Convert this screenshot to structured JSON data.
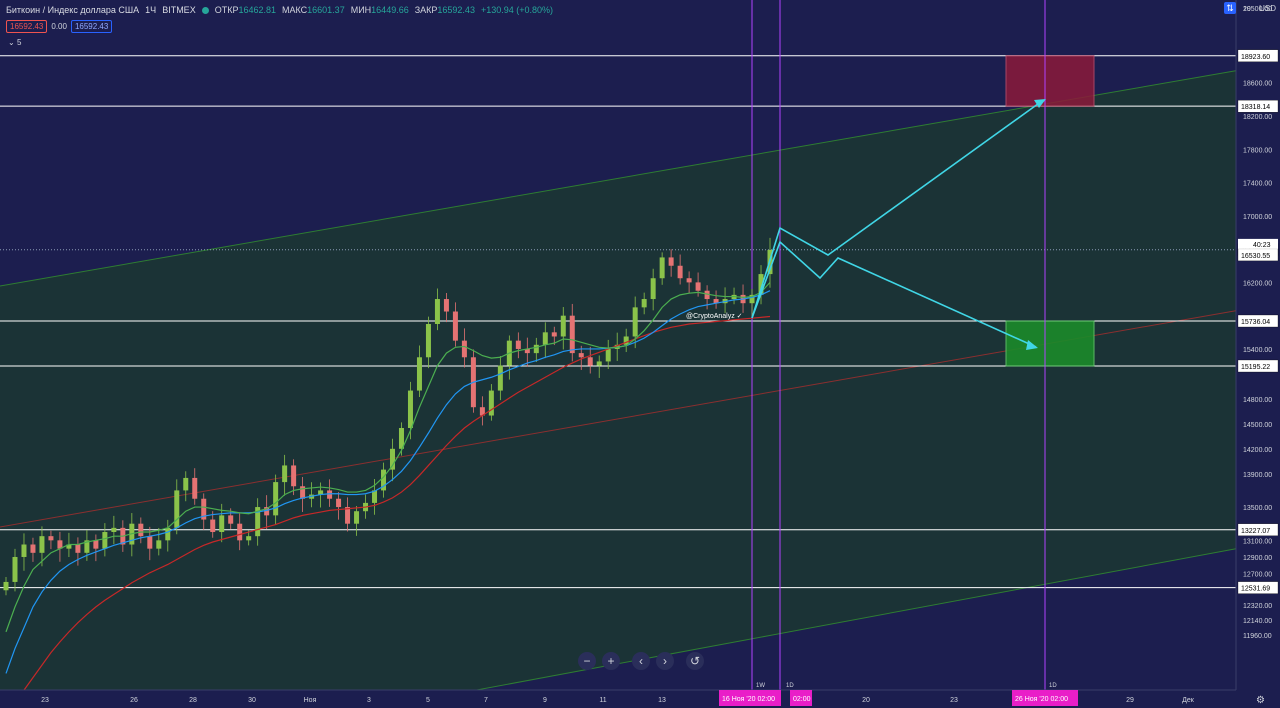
{
  "header": {
    "title": "Биткоин / Индекс доллара США",
    "interval": "1Ч",
    "exchange": "BITMEX",
    "open_label": "ОТКР",
    "open_value": "16462.81",
    "high_label": "МАКС",
    "high_value": "16601.37",
    "low_label": "МИН",
    "low_value": "16449.66",
    "close_label": "ЗАКР",
    "close_value": "16592.43",
    "change": "+130.94 (+0.80%)",
    "bid": "16592.43",
    "spread": "0.00",
    "ask": "16592.43",
    "indicators_count": "5",
    "currency": "USD"
  },
  "colors": {
    "background": "#1c1e4f",
    "channel_fill": "#1b3336",
    "hline": "#ffffff",
    "arrow": "#40d6e6",
    "vline": "#b042ff",
    "ma_green": "#4caf50",
    "ma_blue": "#2196f3",
    "ma_red": "#c62828",
    "up_candle": "#8bc34a",
    "down_candle": "#e57373",
    "target_red": "#8b1a3a",
    "target_green": "#1b8a2a",
    "date_badge": "#e91ec8"
  },
  "watermark": "@CryptoAnalyz ✓",
  "chart_data": {
    "type": "candlestick",
    "ylim": [
      11850,
      20050
    ],
    "y_ticks": [
      19500,
      18600,
      18200,
      17800,
      17400,
      17000,
      16600,
      16200,
      15400,
      14800,
      14500,
      14200,
      13900,
      13500,
      13100,
      12900,
      12700,
      12320,
      12140,
      11960
    ],
    "x_ticks": [
      "23",
      "26",
      "28",
      "30",
      "Ноя",
      "3",
      "5",
      "7",
      "9",
      "11",
      "13",
      "20",
      "23",
      "29",
      "Дек"
    ],
    "top_cut_label": "20",
    "price_levels": [
      {
        "label": "18923.60",
        "value": 18923.6
      },
      {
        "label": "18318.14",
        "value": 18318.14
      },
      {
        "label": "16592.43",
        "value": 16592.43
      },
      {
        "label": "16530.55",
        "value": 16530.55
      },
      {
        "label": "15736.04",
        "value": 15736.04
      },
      {
        "label": "15195.22",
        "value": 15195.22
      },
      {
        "label": "13227.07",
        "value": 13227.07
      },
      {
        "label": "12531.69",
        "value": 12531.69
      }
    ],
    "countdown": "40:23",
    "series_close": [
      12600,
      12900,
      13050,
      12950,
      13150,
      13100,
      13000,
      13050,
      12950,
      13100,
      13000,
      13200,
      13250,
      13050,
      13300,
      13150,
      13000,
      13100,
      13250,
      13700,
      13850,
      13600,
      13350,
      13200,
      13400,
      13300,
      13100,
      13150,
      13500,
      13400,
      13800,
      14000,
      13750,
      13600,
      13650,
      13700,
      13600,
      13500,
      13300,
      13450,
      13550,
      13700,
      13950,
      14200,
      14450,
      14900,
      15300,
      15700,
      16000,
      15850,
      15500,
      15300,
      14700,
      14600,
      14900,
      15200,
      15500,
      15400,
      15350,
      15450,
      15600,
      15550,
      15800,
      15350,
      15300,
      15200,
      15250,
      15400,
      15450,
      15550,
      15900,
      16000,
      16250,
      16500,
      16400,
      16250,
      16200,
      16100,
      16000,
      15950,
      16000,
      16050,
      15950,
      16050,
      16300,
      16590
    ],
    "ma_green": [
      12000,
      12300,
      12550,
      12750,
      12850,
      12950,
      13000,
      13050,
      13050,
      13080,
      13100,
      13120,
      13150,
      13150,
      13180,
      13200,
      13200,
      13220,
      13250,
      13350,
      13450,
      13500,
      13500,
      13480,
      13460,
      13450,
      13430,
      13420,
      13450,
      13480,
      13550,
      13650,
      13700,
      13720,
      13730,
      13740,
      13730,
      13710,
      13680,
      13680,
      13700,
      13760,
      13860,
      14000,
      14180,
      14420,
      14700,
      14950,
      15200,
      15350,
      15420,
      15430,
      15380,
      15320,
      15290,
      15300,
      15350,
      15380,
      15400,
      15420,
      15450,
      15470,
      15520,
      15510,
      15480,
      15450,
      15420,
      15410,
      15420,
      15440,
      15520,
      15620,
      15750,
      15900,
      16000,
      16050,
      16070,
      16080,
      16060,
      16040,
      16030,
      16030,
      16020,
      16030,
      16080,
      16200
    ],
    "ma_blue": [
      11500,
      11800,
      12050,
      12300,
      12480,
      12620,
      12730,
      12810,
      12870,
      12920,
      12960,
      13000,
      13040,
      13070,
      13100,
      13130,
      13150,
      13170,
      13200,
      13250,
      13310,
      13360,
      13390,
      13410,
      13420,
      13430,
      13430,
      13430,
      13440,
      13460,
      13490,
      13540,
      13580,
      13610,
      13630,
      13650,
      13660,
      13660,
      13650,
      13650,
      13660,
      13690,
      13750,
      13830,
      13930,
      14060,
      14220,
      14390,
      14570,
      14730,
      14860,
      14950,
      15000,
      15030,
      15060,
      15100,
      15150,
      15190,
      15230,
      15260,
      15300,
      15330,
      15370,
      15390,
      15400,
      15400,
      15400,
      15410,
      15420,
      15440,
      15480,
      15530,
      15600,
      15680,
      15760,
      15820,
      15870,
      15910,
      15930,
      15950,
      15970,
      15990,
      16000,
      16020,
      16050,
      16100
    ],
    "ma_red": [
      11000,
      11150,
      11300,
      11450,
      11600,
      11750,
      11880,
      12000,
      12110,
      12210,
      12300,
      12380,
      12450,
      12520,
      12590,
      12650,
      12710,
      12760,
      12810,
      12870,
      12930,
      12990,
      13040,
      13080,
      13110,
      13140,
      13170,
      13200,
      13230,
      13260,
      13290,
      13330,
      13370,
      13400,
      13420,
      13440,
      13460,
      13470,
      13480,
      13490,
      13500,
      13520,
      13560,
      13610,
      13680,
      13770,
      13880,
      14000,
      14120,
      14240,
      14350,
      14450,
      14530,
      14600,
      14670,
      14740,
      14810,
      14880,
      14940,
      15000,
      15060,
      15120,
      15180,
      15230,
      15280,
      15320,
      15360,
      15400,
      15440,
      15480,
      15520,
      15560,
      15600,
      15630,
      15660,
      15680,
      15700,
      15710,
      15720,
      15730,
      15740,
      15750,
      15760,
      15770,
      15780,
      15790
    ]
  },
  "time_badges": [
    {
      "label": "16 Ноя '20   02:00"
    },
    {
      "label": "02:00"
    },
    {
      "label": "26 Ноя '20   02:00"
    }
  ],
  "vline_labels": [
    "1W",
    "1D",
    "1D"
  ],
  "toolbar": [
    "−",
    "+",
    "‹",
    "›",
    "↺"
  ]
}
